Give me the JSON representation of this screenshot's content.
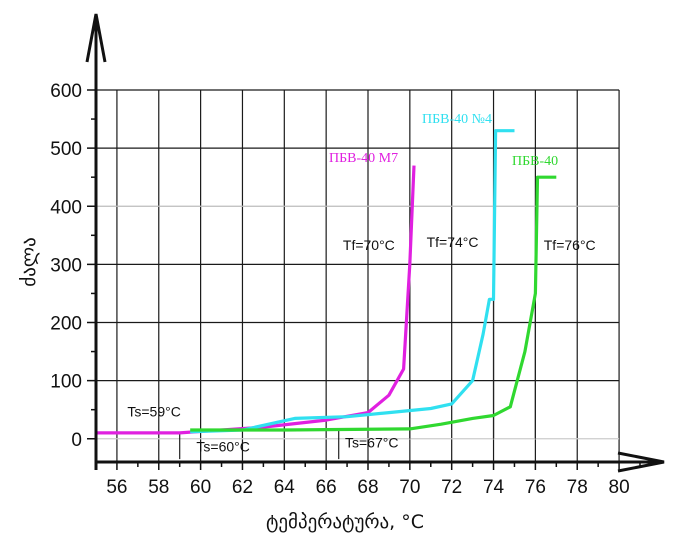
{
  "chart_data": {
    "type": "line",
    "title": "",
    "xlabel": "ტემპერატურა, °C",
    "ylabel": "ძალა",
    "xlim": [
      55,
      81
    ],
    "ylim": [
      -40,
      600
    ],
    "xticks": [
      56,
      58,
      60,
      62,
      64,
      66,
      68,
      70,
      72,
      74,
      76,
      78,
      80
    ],
    "yticks": [
      0,
      100,
      200,
      300,
      400,
      500,
      600
    ],
    "grid": true,
    "series": [
      {
        "name": "ПБВ-40 М7",
        "color": "#e020e0",
        "x": [
          55,
          59,
          63,
          66,
          68,
          69,
          69.7,
          70,
          70.2
        ],
        "y": [
          10,
          10,
          20,
          32,
          45,
          75,
          120,
          300,
          470
        ]
      },
      {
        "name": "ПБВ-40 №4",
        "color": "#30e0f0",
        "x": [
          59.5,
          62,
          64.5,
          67,
          69,
          71,
          72,
          73,
          73.5,
          73.8,
          74,
          74.1,
          75
        ],
        "y": [
          12,
          15,
          35,
          38,
          45,
          52,
          60,
          100,
          180,
          240,
          240,
          530,
          530
        ]
      },
      {
        "name": "ПБВ-40",
        "color": "#30d830",
        "x": [
          59.5,
          64,
          70,
          71.5,
          73,
          74,
          74.8,
          75.5,
          76,
          76.1,
          77
        ],
        "y": [
          15,
          15,
          17,
          25,
          35,
          40,
          55,
          150,
          250,
          450,
          450
        ]
      }
    ],
    "annotations": [
      {
        "text": "Ts=59°C",
        "x": 56.5,
        "y": 38
      },
      {
        "text": "Ts=60°C",
        "x": 59.8,
        "y": -22
      },
      {
        "text": "Ts=67°C",
        "x": 66.9,
        "y": -15
      },
      {
        "text": "Tf=70°C",
        "x": 66.8,
        "y": 325
      },
      {
        "text": "Tf=74°C",
        "x": 70.8,
        "y": 330
      },
      {
        "text": "Tf=76°C",
        "x": 76.4,
        "y": 325
      }
    ],
    "markers": [
      {
        "x": 59,
        "y1": -35,
        "y2": 10
      },
      {
        "x": 66.6,
        "y1": -35,
        "y2": 15
      },
      {
        "x": 70,
        "y1": 0,
        "y2": 300
      },
      {
        "x": 74,
        "y1": 0,
        "y2": 240
      },
      {
        "x": 76,
        "y1": 0,
        "y2": 260
      }
    ]
  }
}
